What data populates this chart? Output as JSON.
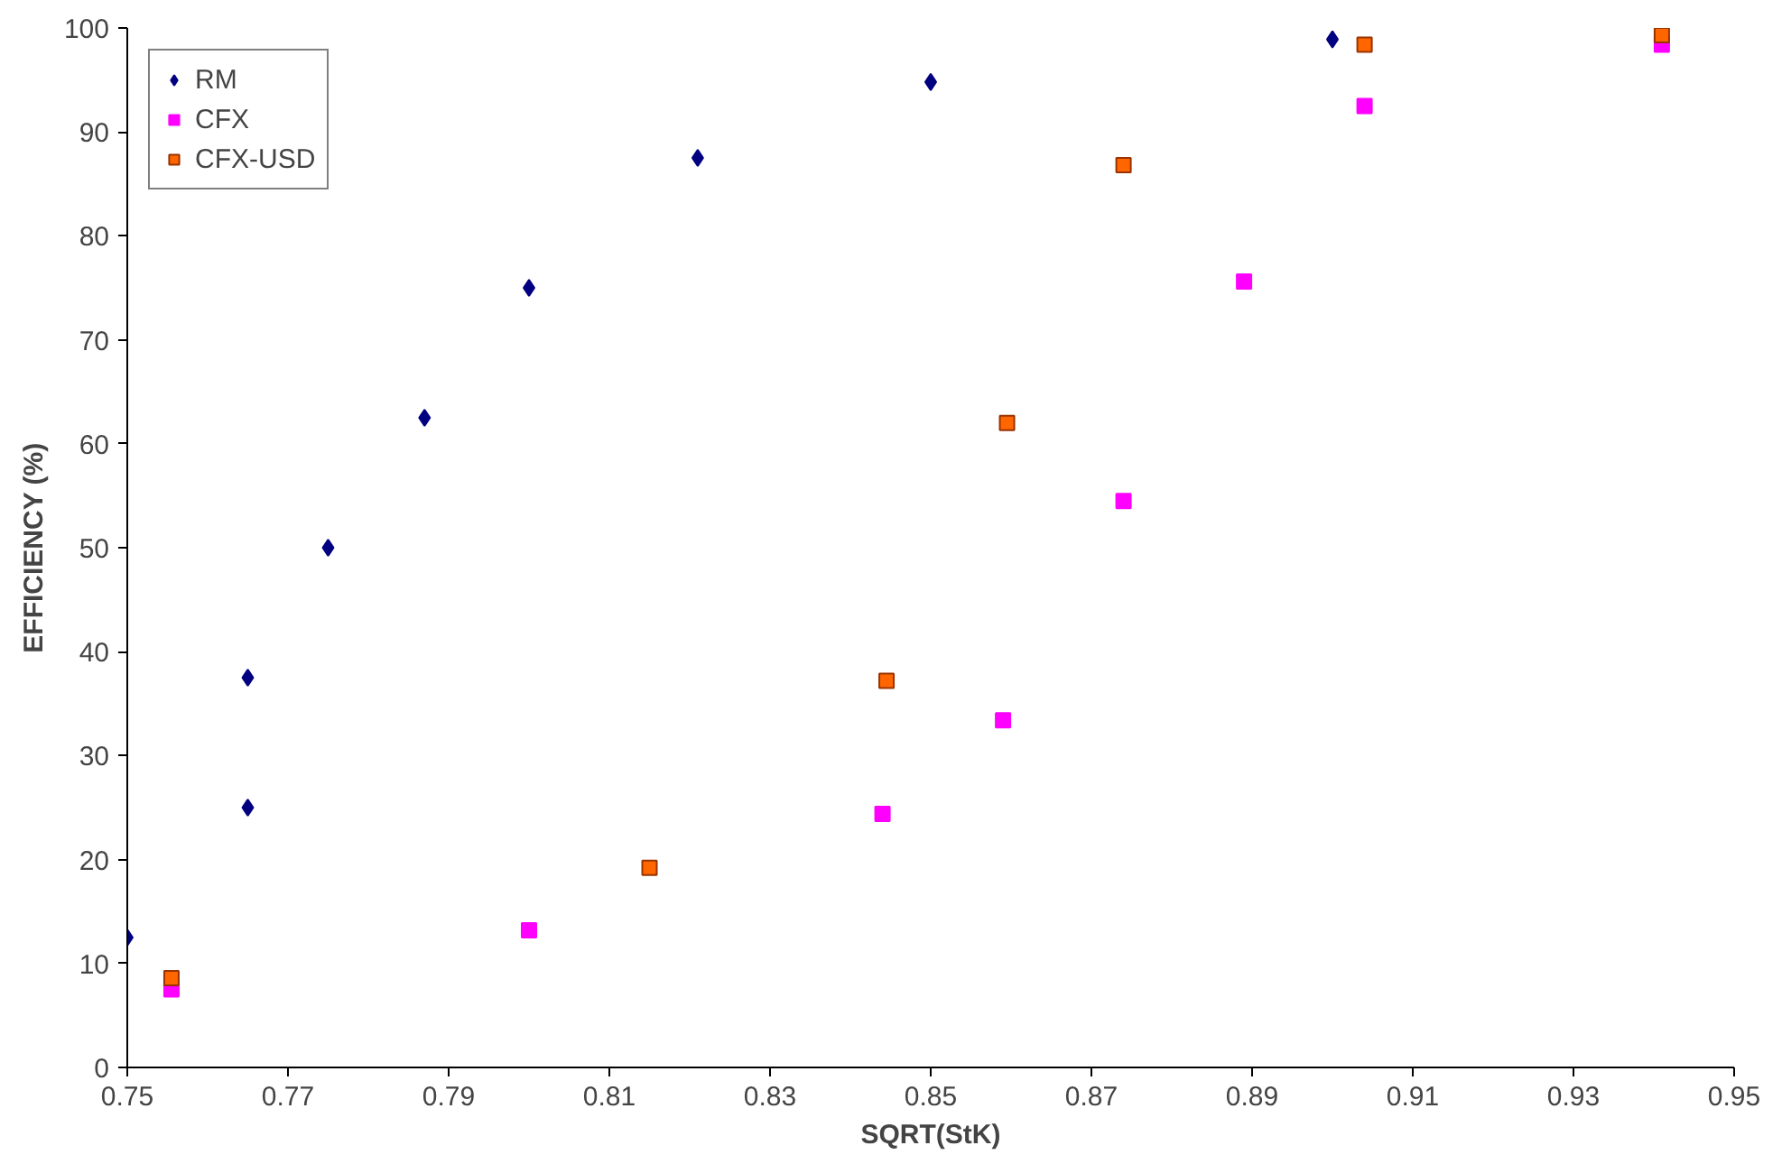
{
  "chart_data": {
    "type": "scatter",
    "xlabel": "SQRT(StK)",
    "ylabel": "EFFICIENCY (%)",
    "xlim": [
      0.75,
      0.95
    ],
    "xticks": [
      0.75,
      0.77,
      0.79,
      0.81,
      0.83,
      0.85,
      0.87,
      0.89,
      0.91,
      0.93,
      0.95
    ],
    "ylim": [
      0,
      100
    ],
    "yticks": [
      0,
      10,
      20,
      30,
      40,
      50,
      60,
      70,
      80,
      90,
      100
    ],
    "grid": false,
    "legend": "top left",
    "series": [
      {
        "name": "RM",
        "color": "#000080",
        "marker": "diamond",
        "x": [
          0.75,
          0.765,
          0.765,
          0.775,
          0.787,
          0.8,
          0.821,
          0.85,
          0.9
        ],
        "values": [
          12.5,
          25,
          37.5,
          50,
          62.5,
          75,
          87.5,
          94.8,
          98.9
        ]
      },
      {
        "name": "CFX",
        "color": "#ff00ff",
        "marker": "square",
        "x": [
          0.7555,
          0.8,
          0.844,
          0.859,
          0.874,
          0.889,
          0.904,
          0.941
        ],
        "values": [
          7.5,
          13.2,
          24.4,
          33.4,
          54.5,
          75.6,
          92.5,
          98.4
        ]
      },
      {
        "name": "CFX-USD",
        "color": "#ff6600",
        "marker": "square",
        "x": [
          0.7555,
          0.815,
          0.8445,
          0.8595,
          0.874,
          0.904,
          0.941
        ],
        "values": [
          8.6,
          19.2,
          37.2,
          62.0,
          86.8,
          98.4,
          99.3
        ]
      }
    ]
  }
}
